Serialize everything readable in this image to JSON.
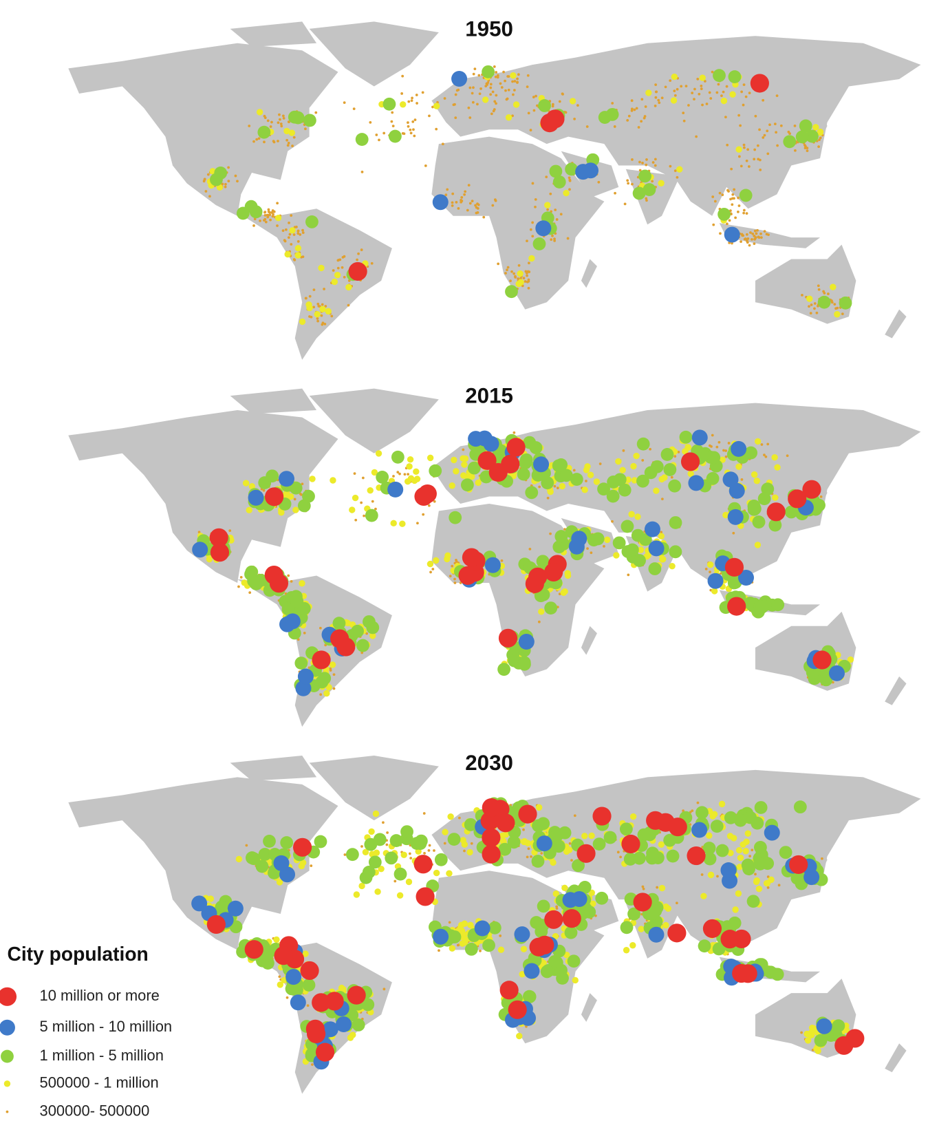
{
  "maps": [
    {
      "title": "1950"
    },
    {
      "title": "2015"
    },
    {
      "title": "2030"
    }
  ],
  "legend": {
    "title": "City population",
    "items": [
      {
        "label": "10 million or more",
        "color": "#e8322d"
      },
      {
        "label": "5 million - 10 million",
        "color": "#3f7ac9"
      },
      {
        "label": "1 million - 5 million",
        "color": "#8fd13f"
      },
      {
        "label": "500000 - 1 million",
        "color": "#ecea2a"
      },
      {
        "label": "300000- 500000",
        "color": "#e0a030"
      }
    ]
  }
}
